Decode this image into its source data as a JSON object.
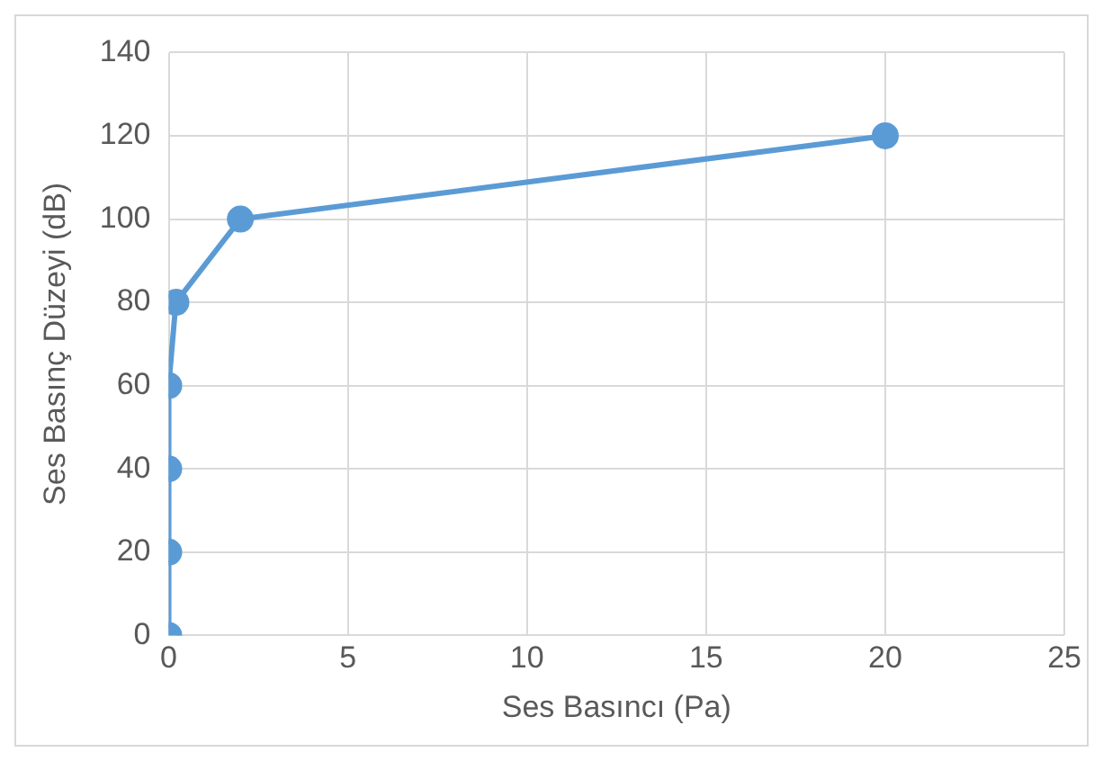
{
  "chart_data": {
    "type": "line",
    "xlabel": "Ses Basıncı (Pa)",
    "ylabel": "Ses Basınç Düzeyi (dB)",
    "x": [
      0,
      0,
      0,
      0,
      0.2,
      2,
      20
    ],
    "series": [
      {
        "color": "#5b9bd5",
        "values": [
          0,
          20,
          40,
          60,
          80,
          100,
          120
        ]
      }
    ],
    "xlim": [
      0,
      25
    ],
    "xticks": [
      0,
      5,
      10,
      15,
      20,
      25
    ],
    "ylim": [
      0,
      140
    ],
    "yticks": [
      0,
      20,
      40,
      60,
      80,
      100,
      120,
      140
    ],
    "grid": true,
    "legend": false,
    "marker": "circle",
    "line_style": "solid"
  }
}
